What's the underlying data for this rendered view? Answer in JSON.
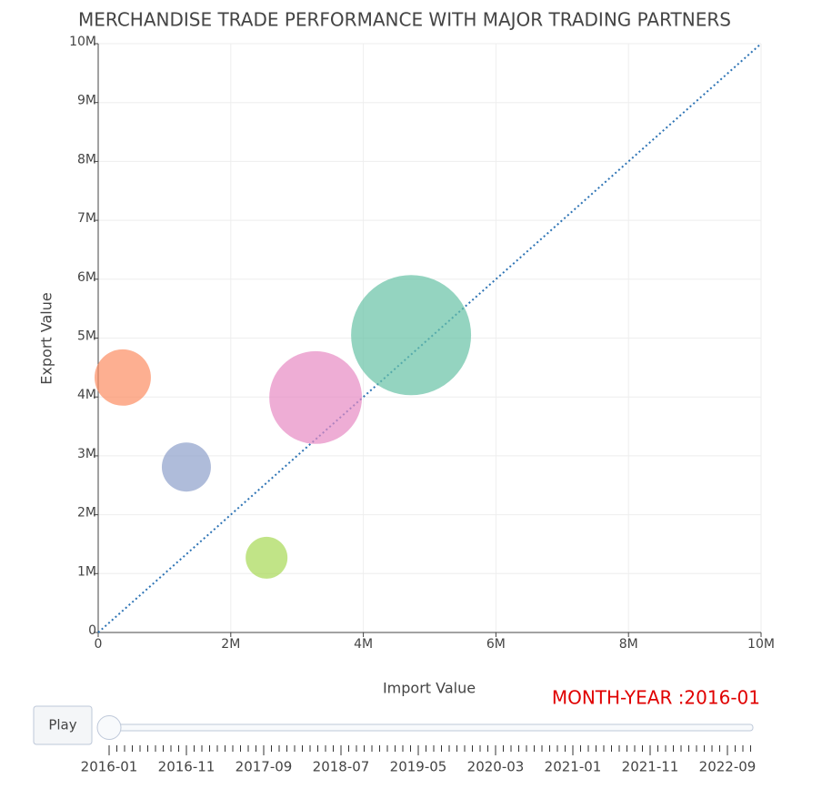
{
  "chart_data": {
    "type": "scatter",
    "title": "MERCHANDISE TRADE PERFORMANCE WITH MAJOR TRADING PARTNERS",
    "xlabel": "Import Value",
    "ylabel": "Export Value",
    "x": [
      370000,
      1330000,
      2540000,
      3280000,
      4720000
    ],
    "values": [
      4330000,
      2810000,
      1270000,
      3990000,
      5050000
    ],
    "sizes": [
      0.96,
      0.73,
      0.53,
      2.6,
      4.36
    ],
    "colors": [
      "#fc8d62",
      "#8da0cb",
      "#a6d854",
      "#e78ac3",
      "#66c2a5"
    ],
    "reference_line": {
      "x": [
        0,
        10000000
      ],
      "y": [
        0,
        10000000
      ],
      "color": "#2e74b5"
    },
    "xlim": [
      0,
      10000000
    ],
    "ylim": [
      0,
      10000000
    ],
    "xticks": [
      0,
      {
        "value": 2000000,
        "label": "2M"
      },
      {
        "value": 4000000,
        "label": "4M"
      },
      {
        "value": 6000000,
        "label": "6M"
      },
      {
        "value": 8000000,
        "label": "8M"
      },
      {
        "value": 10000000,
        "label": "10M"
      }
    ],
    "yticks": [
      0,
      {
        "value": 1000000,
        "label": "1M"
      },
      {
        "value": 2000000,
        "label": "2M"
      },
      {
        "value": 3000000,
        "label": "3M"
      },
      {
        "value": 4000000,
        "label": "4M"
      },
      {
        "value": 5000000,
        "label": "5M"
      },
      {
        "value": 6000000,
        "label": "6M"
      },
      {
        "value": 7000000,
        "label": "7M"
      },
      {
        "value": 8000000,
        "label": "8M"
      },
      {
        "value": 9000000,
        "label": "9M"
      },
      {
        "value": 10000000,
        "label": "10M"
      }
    ],
    "grid": true
  },
  "slider": {
    "button": "Play",
    "current_label": "MONTH-YEAR :2016-01",
    "labels": [
      "2016-01",
      "2016-11",
      "2017-09",
      "2018-07",
      "2019-05",
      "2020-03",
      "2021-01",
      "2021-11",
      "2022-09"
    ]
  }
}
